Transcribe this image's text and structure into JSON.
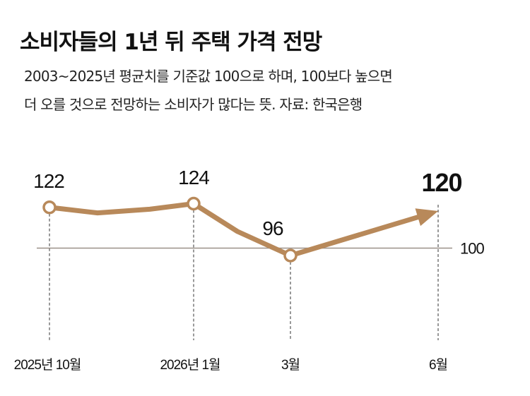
{
  "header": {
    "title": "소비자들의 1년 뒤 주택 가격 전망",
    "subtitle_line1": "2003~2025년 평균치를 기준값 100으로 하며, 100보다 높으면",
    "subtitle_line2": "더 오를 것으로 전망하는 소비자가 많다는 뜻. 자료: 한국은행"
  },
  "chart_data": {
    "type": "line",
    "title": "소비자들의 1년 뒤 주택 가격 전망",
    "categories": [
      "2025년 10월",
      "2026년 1월",
      "3월",
      "6월"
    ],
    "points": [
      {
        "x": "2025년 10월",
        "y": 122,
        "label": "122",
        "marker": true
      },
      {
        "x": "2025년 11월",
        "y": 119,
        "label": "",
        "marker": false
      },
      {
        "x": "2025년 12월",
        "y": 121,
        "label": "",
        "marker": false
      },
      {
        "x": "2026년 1월",
        "y": 124,
        "label": "124",
        "marker": true
      },
      {
        "x": "2026년 2월",
        "y": 109,
        "label": "",
        "marker": false
      },
      {
        "x": "3월",
        "y": 96,
        "label": "96",
        "marker": true
      },
      {
        "x": "6월",
        "y": 120,
        "label": "120",
        "marker": false,
        "arrow": true
      }
    ],
    "reference_line": {
      "value": 100,
      "label": "100"
    },
    "colors": {
      "line": "#b8895a",
      "reference": "#9a9088",
      "marker_fill": "#ffffff"
    }
  }
}
